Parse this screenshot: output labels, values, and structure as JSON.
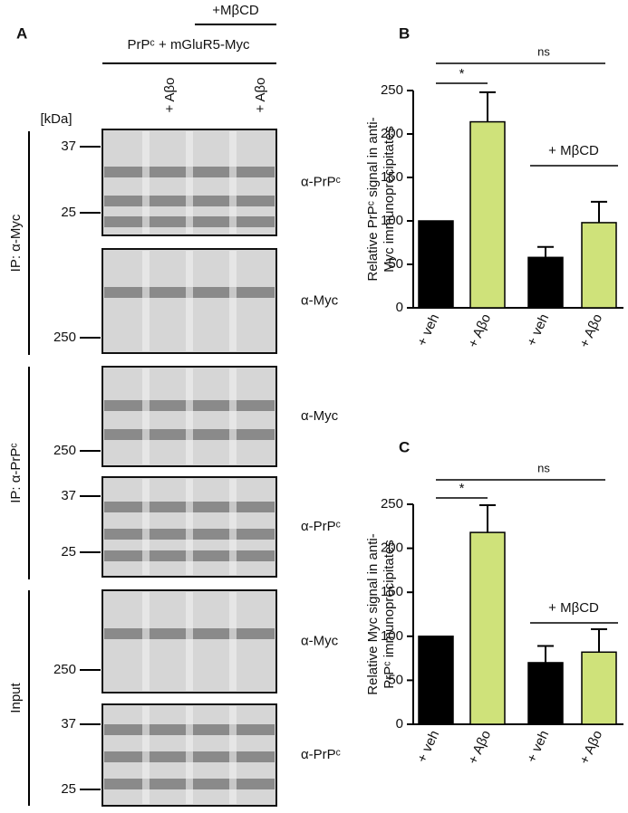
{
  "panel_a": {
    "label": "A",
    "treatment": "+MβCD",
    "transfection": "PrPᶜ + mGluR5-Myc",
    "lanes": [
      "+ Aβo",
      "+ Aβo"
    ],
    "unit": "[kDa]",
    "groups": [
      "IP: α-Myc",
      "IP: α-PrPᶜ",
      "Input"
    ],
    "blots": [
      {
        "antibody": "α-PrPᶜ",
        "markers": [
          37,
          25
        ]
      },
      {
        "antibody": "α-Myc",
        "markers": [
          250
        ]
      },
      {
        "antibody": "α-Myc",
        "markers": [
          250
        ]
      },
      {
        "antibody": "α-PrPᶜ",
        "markers": [
          37,
          25
        ]
      },
      {
        "antibody": "α-Myc",
        "markers": [
          250
        ]
      },
      {
        "antibody": "α-PrPᶜ",
        "markers": [
          37,
          25
        ]
      }
    ]
  },
  "chart_data": [
    {
      "type": "bar",
      "panel": "B",
      "ylabel": [
        "Relative PrPᶜ signal in anti-",
        "Myc immunoprecipitates"
      ],
      "categories": [
        "+ veh",
        "+ Aβo",
        "+ veh",
        "+ Aβo"
      ],
      "values": [
        100,
        214,
        58,
        98
      ],
      "errors": [
        null,
        34,
        12,
        24
      ],
      "colors": [
        "#000000",
        "#cfe27a",
        "#000000",
        "#cfe27a"
      ],
      "ylim": [
        0,
        250
      ],
      "yticks": [
        0,
        50,
        100,
        150,
        200,
        250
      ],
      "annotations": [
        "*",
        "ns",
        "+ MβCD"
      ]
    },
    {
      "type": "bar",
      "panel": "C",
      "ylabel": [
        "Relative Myc signal in anti-",
        "PrPᶜ immunoprecipitates"
      ],
      "categories": [
        "+ veh",
        "+ Aβo",
        "+ veh",
        "+ Aβo"
      ],
      "values": [
        100,
        218,
        70,
        82
      ],
      "errors": [
        null,
        31,
        19,
        26
      ],
      "colors": [
        "#000000",
        "#cfe27a",
        "#000000",
        "#cfe27a"
      ],
      "ylim": [
        0,
        250
      ],
      "yticks": [
        0,
        50,
        100,
        150,
        200,
        250
      ],
      "annotations": [
        "*",
        "ns",
        "+ MβCD"
      ]
    }
  ]
}
